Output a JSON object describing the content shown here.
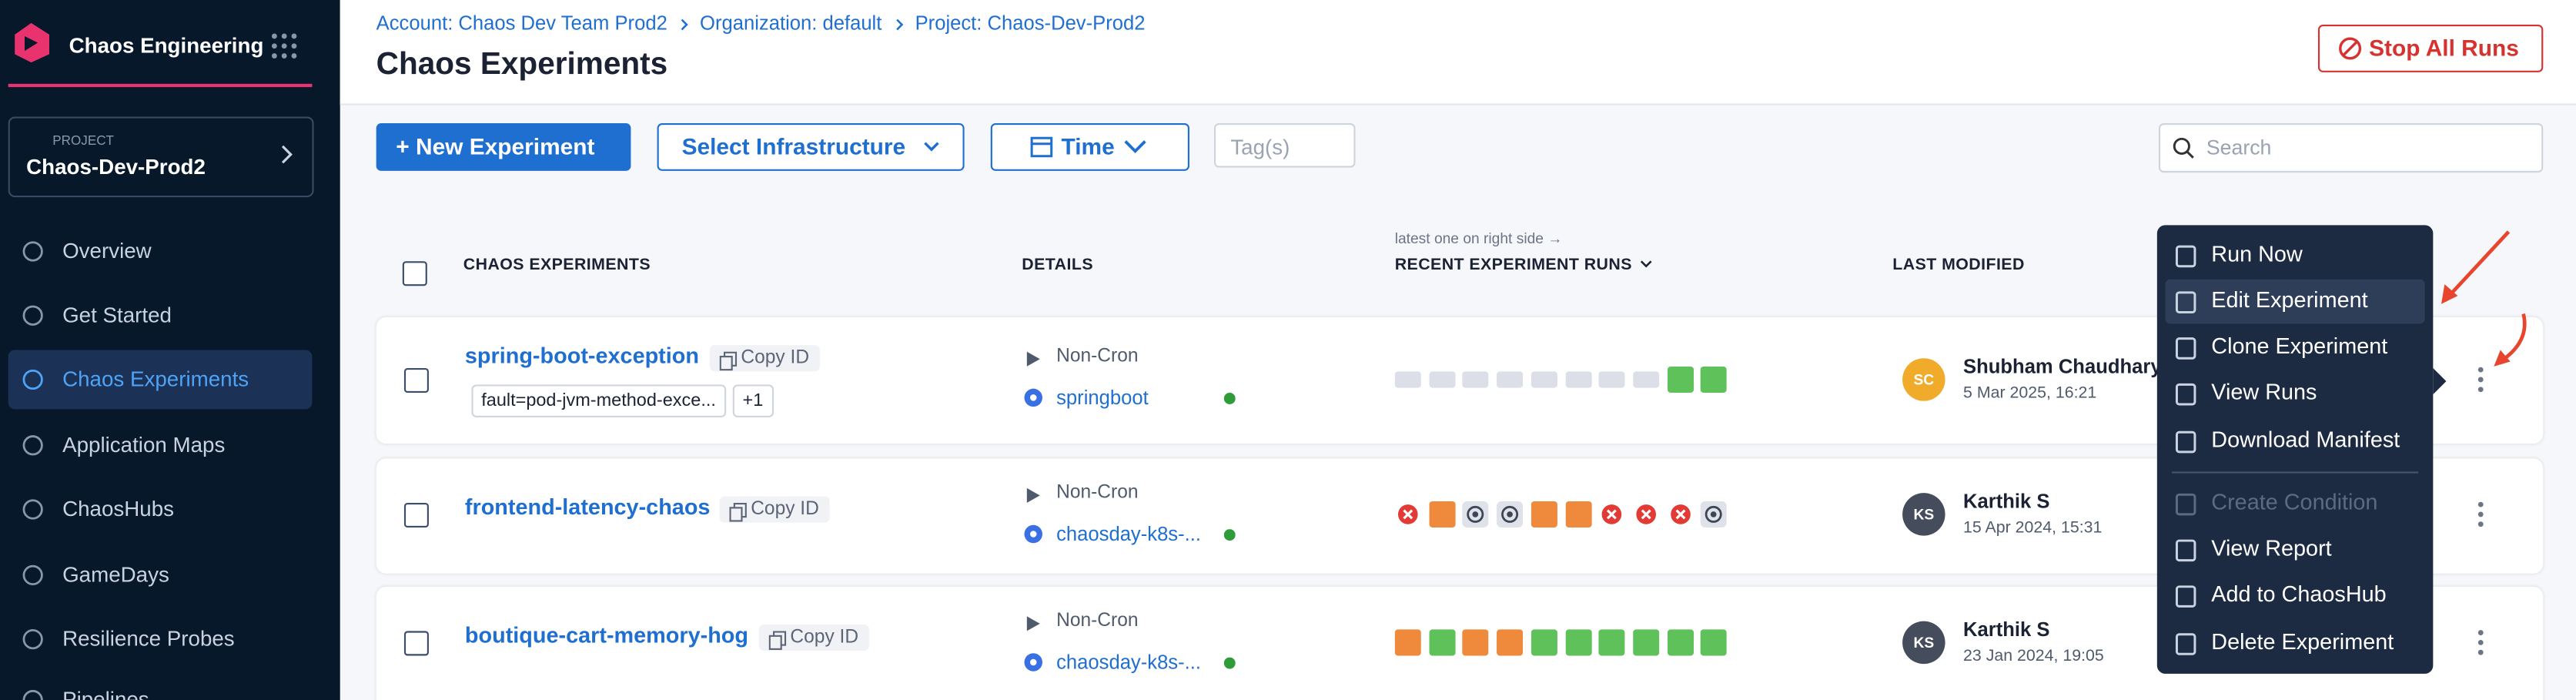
{
  "sidebar": {
    "title": "Chaos Engineering",
    "project_label": "PROJECT",
    "project": "Chaos-Dev-Prod2",
    "nav": [
      "Overview",
      "Get Started",
      "Chaos Experiments",
      "Application Maps",
      "ChaosHubs",
      "GameDays",
      "Resilience Probes",
      "Pipelines"
    ]
  },
  "header": {
    "breadcrumbs": [
      "Account: Chaos Dev Team Prod2",
      "Organization: default",
      "Project: Chaos-Dev-Prod2"
    ],
    "title": "Chaos Experiments",
    "stop_button": "Stop All Runs"
  },
  "toolbar": {
    "new_experiment": "New Experiment",
    "infrastructure": "Select Infrastructure",
    "time": "Time",
    "tags": "Tag(s)",
    "search": "Search"
  },
  "table": {
    "columns": [
      "CHAOS EXPERIMENTS",
      "DETAILS",
      "RECENT EXPERIMENT RUNS",
      "LAST MODIFIED"
    ],
    "runs_hint": "latest one on right side →",
    "rows": [
      {
        "name": "spring-boot-exception",
        "copy_id": "Copy ID",
        "tags": [
          "fault=pod-jvm-method-exce...",
          "+1"
        ],
        "schedule": "Non-Cron",
        "infrastructure": "springboot",
        "initials": "SC",
        "user": "Shubham Chaudhary",
        "date": "5 Mar 2025, 16:21"
      },
      {
        "name": "frontend-latency-chaos",
        "copy_id": "Copy ID",
        "tags": [],
        "schedule": "Non-Cron",
        "infrastructure": "chaosday-k8s-...",
        "initials": "KS",
        "user": "Karthik S",
        "date": "15 Apr 2024, 15:31"
      },
      {
        "name": "boutique-cart-memory-hog",
        "copy_id": "Copy ID",
        "tags": [],
        "schedule": "Non-Cron",
        "infrastructure": "chaosday-k8s-...",
        "initials": "KS",
        "user": "Karthik S",
        "date": "23 Jan 2024, 19:05"
      }
    ]
  },
  "menu": {
    "items": [
      "Run Now",
      "Edit Experiment",
      "Clone Experiment",
      "View Runs",
      "Download Manifest",
      "Create Condition",
      "View Report",
      "Add to ChaosHub",
      "Delete Experiment"
    ]
  }
}
